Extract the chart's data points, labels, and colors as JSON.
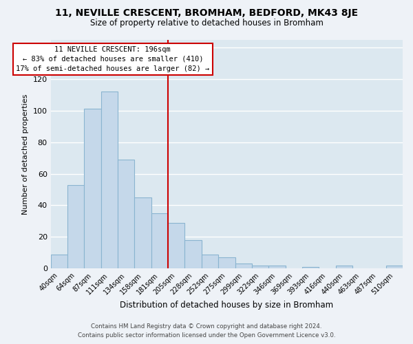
{
  "title": "11, NEVILLE CRESCENT, BROMHAM, BEDFORD, MK43 8JE",
  "subtitle": "Size of property relative to detached houses in Bromham",
  "xlabel": "Distribution of detached houses by size in Bromham",
  "ylabel": "Number of detached properties",
  "footer_line1": "Contains HM Land Registry data © Crown copyright and database right 2024.",
  "footer_line2": "Contains public sector information licensed under the Open Government Licence v3.0.",
  "bar_labels": [
    "40sqm",
    "64sqm",
    "87sqm",
    "111sqm",
    "134sqm",
    "158sqm",
    "181sqm",
    "205sqm",
    "228sqm",
    "252sqm",
    "275sqm",
    "299sqm",
    "322sqm",
    "346sqm",
    "369sqm",
    "393sqm",
    "416sqm",
    "440sqm",
    "463sqm",
    "487sqm",
    "510sqm"
  ],
  "bar_values": [
    9,
    53,
    101,
    112,
    69,
    45,
    35,
    29,
    18,
    9,
    7,
    3,
    2,
    2,
    0,
    1,
    0,
    2,
    0,
    0,
    2
  ],
  "bar_color": "#c5d8ea",
  "bar_edge_color": "#8ab4d0",
  "annotation_title": "11 NEVILLE CRESCENT: 196sqm",
  "annotation_line2": "← 83% of detached houses are smaller (410)",
  "annotation_line3": "17% of semi-detached houses are larger (82) →",
  "annotation_box_color": "#ffffff",
  "annotation_box_edge": "#cc0000",
  "vline_color": "#cc0000",
  "vline_x_index": 6.5,
  "ylim": [
    0,
    145
  ],
  "bg_color": "#eef2f7",
  "plot_bg_color": "#dce8f0",
  "grid_color": "#ffffff"
}
